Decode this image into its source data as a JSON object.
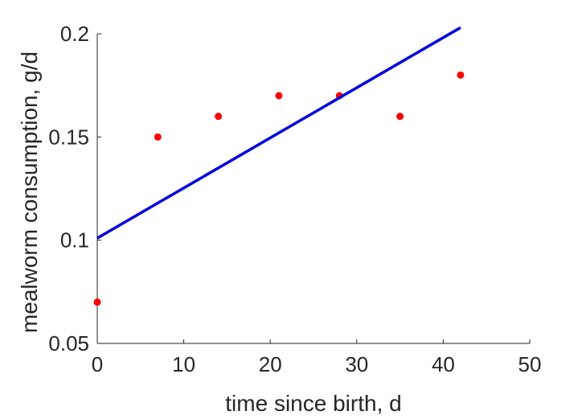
{
  "chart_data": {
    "type": "scatter",
    "title": "",
    "xlabel": "time since birth, d",
    "ylabel": "mealworm consumption, g/d",
    "xlim": [
      0,
      50
    ],
    "ylim": [
      0.05,
      0.2
    ],
    "xticks": [
      0,
      10,
      20,
      30,
      40,
      50
    ],
    "xtick_labels": [
      "0",
      "10",
      "20",
      "30",
      "40",
      "50"
    ],
    "yticks": [
      0.05,
      0.1,
      0.15,
      0.2
    ],
    "ytick_labels": [
      "0.05",
      "0.1",
      "0.15",
      "0.2"
    ],
    "grid": false,
    "box": false,
    "series": [
      {
        "type": "scatter",
        "color": "#ff0000",
        "x": [
          0,
          7,
          14,
          21,
          28,
          35,
          42
        ],
        "y": [
          0.07,
          0.15,
          0.16,
          0.17,
          0.17,
          0.16,
          0.18
        ]
      },
      {
        "type": "line",
        "color": "#0000dd",
        "x": [
          0,
          42
        ],
        "y": [
          0.101,
          0.203
        ]
      }
    ]
  }
}
